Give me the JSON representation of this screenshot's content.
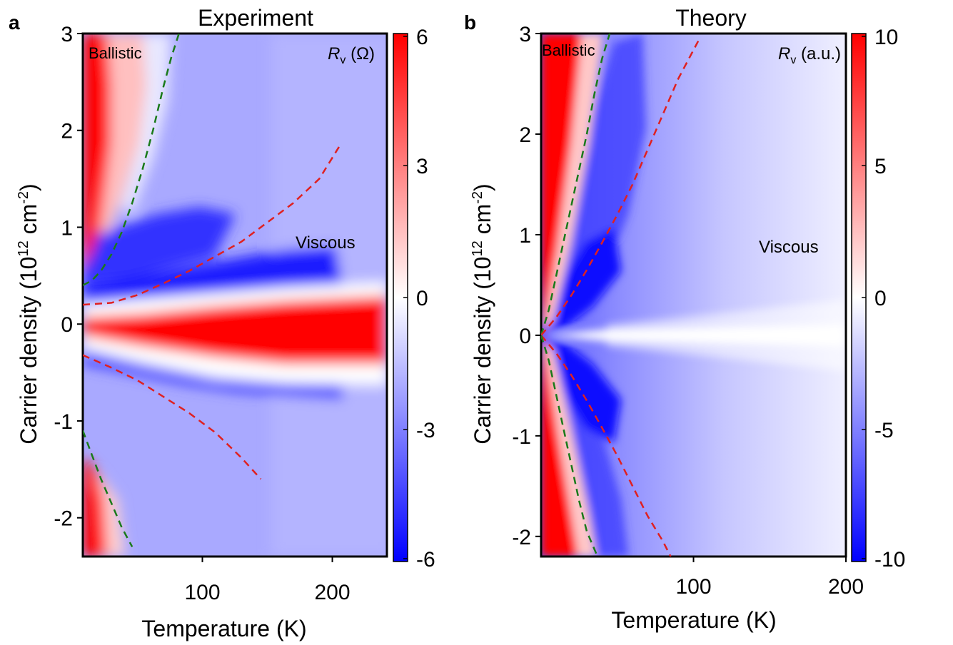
{
  "chart_data": [
    {
      "panel_label": "a",
      "title": "Experiment",
      "type": "heatmap",
      "xlabel": "Temperature (K)",
      "ylabel_main": "Carrier density (10",
      "ylabel_sup1": "12",
      "ylabel_mid": " cm",
      "ylabel_sup2": "-2",
      "ylabel_end": ")",
      "xlim": [
        8,
        242
      ],
      "ylim": [
        -2.4,
        3
      ],
      "xticks": [
        100,
        200
      ],
      "yticks": [
        -2,
        -1,
        0,
        1,
        2,
        3
      ],
      "colorbar": {
        "label_var": "R",
        "label_sub": "v",
        "label_unit": " (Ω)",
        "range": [
          -6,
          6
        ],
        "ticks": [
          6,
          3,
          0,
          -3,
          -6
        ],
        "tick_labels": [
          "6",
          "3",
          "0",
          "-3",
          "-6"
        ]
      },
      "annotations": {
        "ballistic": "Ballistic",
        "viscous": "Viscous"
      },
      "boundaries": [
        {
          "color": "#1a7a1a",
          "points": [
            [
              8,
              0.4
            ],
            [
              15,
              0.45
            ],
            [
              22,
              0.55
            ],
            [
              30,
              0.72
            ],
            [
              38,
              0.95
            ],
            [
              46,
              1.25
            ],
            [
              54,
              1.6
            ],
            [
              62,
              2.0
            ],
            [
              70,
              2.45
            ],
            [
              76,
              2.75
            ],
            [
              82,
              3.0
            ]
          ]
        },
        {
          "color": "#e02020",
          "points": [
            [
              8,
              0.2
            ],
            [
              30,
              0.22
            ],
            [
              50,
              0.3
            ],
            [
              70,
              0.42
            ],
            [
              90,
              0.55
            ],
            [
              110,
              0.7
            ],
            [
              130,
              0.85
            ],
            [
              150,
              1.05
            ],
            [
              170,
              1.25
            ],
            [
              190,
              1.5
            ],
            [
              207,
              1.87
            ]
          ]
        },
        {
          "color": "#e02020",
          "points": [
            [
              8,
              -0.32
            ],
            [
              30,
              -0.45
            ],
            [
              50,
              -0.58
            ],
            [
              70,
              -0.75
            ],
            [
              90,
              -0.92
            ],
            [
              110,
              -1.12
            ],
            [
              130,
              -1.38
            ],
            [
              145,
              -1.6
            ]
          ]
        },
        {
          "color": "#1a7a1a",
          "points": [
            [
              8,
              -1.1
            ],
            [
              15,
              -1.35
            ],
            [
              22,
              -1.6
            ],
            [
              30,
              -1.85
            ],
            [
              38,
              -2.1
            ],
            [
              46,
              -2.3
            ]
          ]
        }
      ]
    },
    {
      "panel_label": "b",
      "title": "Theory",
      "type": "heatmap",
      "xlabel": "Temperature (K)",
      "ylabel_main": "Carrier density (10",
      "ylabel_sup1": "12",
      "ylabel_mid": " cm",
      "ylabel_sup2": "-2",
      "ylabel_end": ")",
      "xlim": [
        0,
        200
      ],
      "ylim": [
        -2.2,
        3
      ],
      "xticks": [
        100,
        200
      ],
      "yticks": [
        -2,
        -1,
        0,
        1,
        2,
        3
      ],
      "colorbar": {
        "label_var": "R",
        "label_sub": "v",
        "label_unit": " (a.u.)",
        "range": [
          -10,
          10
        ],
        "ticks": [
          10,
          5,
          0,
          -5,
          -10
        ],
        "tick_labels": [
          "10",
          "5",
          "0",
          "-5",
          "-10"
        ]
      },
      "annotations": {
        "ballistic": "Ballistic",
        "viscous": "Viscous"
      },
      "boundaries": [
        {
          "color": "#1a7a1a",
          "points": [
            [
              0,
              0
            ],
            [
              5,
              0.25
            ],
            [
              10,
              0.6
            ],
            [
              15,
              0.95
            ],
            [
              20,
              1.3
            ],
            [
              25,
              1.65
            ],
            [
              30,
              2.0
            ],
            [
              35,
              2.4
            ],
            [
              40,
              2.75
            ],
            [
              45,
              3.0
            ]
          ]
        },
        {
          "color": "#e02020",
          "points": [
            [
              0,
              0
            ],
            [
              10,
              0.18
            ],
            [
              20,
              0.4
            ],
            [
              30,
              0.65
            ],
            [
              40,
              0.92
            ],
            [
              50,
              1.2
            ],
            [
              60,
              1.5
            ],
            [
              70,
              1.85
            ],
            [
              80,
              2.2
            ],
            [
              90,
              2.55
            ],
            [
              104,
              2.95
            ]
          ]
        },
        {
          "color": "#e02020",
          "points": [
            [
              0,
              0
            ],
            [
              10,
              -0.18
            ],
            [
              20,
              -0.4
            ],
            [
              30,
              -0.65
            ],
            [
              40,
              -0.92
            ],
            [
              50,
              -1.2
            ],
            [
              60,
              -1.5
            ],
            [
              70,
              -1.8
            ],
            [
              80,
              -2.05
            ],
            [
              85,
              -2.2
            ]
          ]
        },
        {
          "color": "#1a7a1a",
          "points": [
            [
              0,
              0
            ],
            [
              5,
              -0.25
            ],
            [
              10,
              -0.6
            ],
            [
              15,
              -0.95
            ],
            [
              20,
              -1.3
            ],
            [
              25,
              -1.65
            ],
            [
              30,
              -1.95
            ],
            [
              37,
              -2.2
            ]
          ]
        }
      ]
    }
  ]
}
